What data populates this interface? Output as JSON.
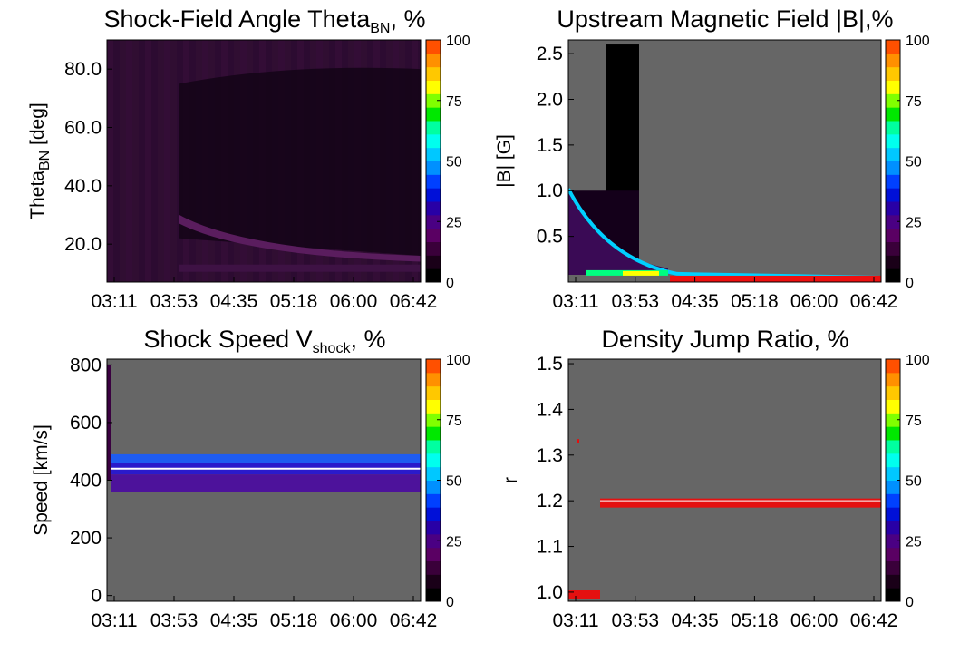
{
  "chart_data": [
    {
      "type": "heatmap",
      "title": {
        "main": "Shock-Field Angle Theta",
        "sub": "BN",
        "suffix": ", %"
      },
      "ylabel": {
        "main": "Theta",
        "sub": "BN",
        "suffix": " [deg]"
      },
      "xticks": [
        "03:11",
        "03:53",
        "04:35",
        "05:18",
        "06:00",
        "06:42"
      ],
      "yticks": [
        "20.0",
        "40.0",
        "60.0",
        "80.0"
      ],
      "ytick_values": [
        20,
        40,
        60,
        80
      ],
      "ylim": [
        7,
        90
      ],
      "colorbar_ticks": [
        "0",
        "25",
        "50",
        "75",
        "100"
      ]
    },
    {
      "type": "heatmap",
      "title": {
        "main": "Upstream Magnetic Field |B|,%",
        "sub": "",
        "suffix": ""
      },
      "ylabel": {
        "main": "|B| [G]",
        "sub": "",
        "suffix": ""
      },
      "xticks": [
        "03:11",
        "03:53",
        "04:35",
        "05:18",
        "06:00",
        "06:42"
      ],
      "yticks": [
        "0.5",
        "1.0",
        "1.5",
        "2.0",
        "2.5"
      ],
      "ytick_values": [
        0.5,
        1.0,
        1.5,
        2.0,
        2.5
      ],
      "ylim": [
        0,
        2.65
      ],
      "colorbar_ticks": [
        "0",
        "25",
        "50",
        "75",
        "100"
      ]
    },
    {
      "type": "heatmap",
      "title": {
        "main": "Shock Speed V",
        "sub": "shock",
        "suffix": ", %"
      },
      "ylabel": {
        "main": "Speed [km/s]",
        "sub": "",
        "suffix": ""
      },
      "xticks": [
        "03:11",
        "03:53",
        "04:35",
        "05:18",
        "06:00",
        "06:42"
      ],
      "yticks": [
        "0",
        "200",
        "400",
        "600",
        "800"
      ],
      "ytick_values": [
        0,
        200,
        400,
        600,
        800
      ],
      "ylim": [
        -20,
        820
      ],
      "colorbar_ticks": [
        "0",
        "25",
        "50",
        "75",
        "100"
      ]
    },
    {
      "type": "heatmap",
      "title": {
        "main": "Density Jump Ratio, %",
        "sub": "",
        "suffix": ""
      },
      "ylabel": {
        "main": "r",
        "sub": "",
        "suffix": ""
      },
      "xticks": [
        "03:11",
        "03:53",
        "04:35",
        "05:18",
        "06:00",
        "06:42"
      ],
      "yticks": [
        "1.0",
        "1.1",
        "1.2",
        "1.3",
        "1.4",
        "1.5"
      ],
      "ytick_values": [
        1.0,
        1.1,
        1.2,
        1.3,
        1.4,
        1.5
      ],
      "ylim": [
        0.98,
        1.51
      ],
      "colorbar_ticks": [
        "0",
        "25",
        "50",
        "75",
        "100"
      ]
    }
  ]
}
